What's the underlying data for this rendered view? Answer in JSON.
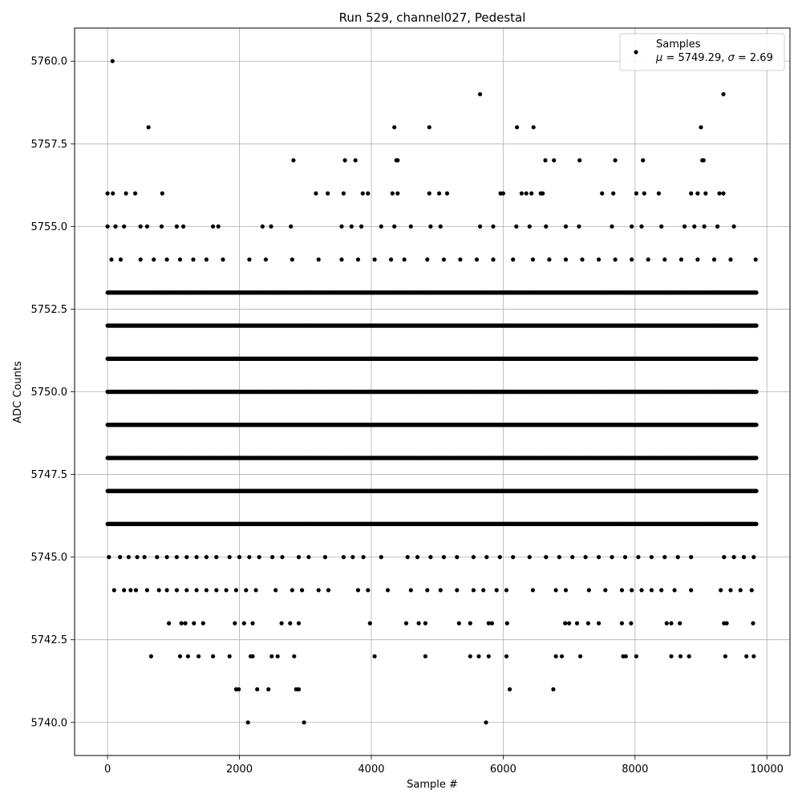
{
  "chart_data": {
    "type": "scatter",
    "title": "Run 529, channel027, Pedestal",
    "xlabel": "Sample #",
    "ylabel": "ADC Counts",
    "xlim": [
      -500,
      10350
    ],
    "ylim": [
      5739.0,
      5761.0
    ],
    "x_ticks": [
      0,
      2000,
      4000,
      6000,
      8000,
      10000
    ],
    "x_tick_labels": [
      "0",
      "2000",
      "4000",
      "6000",
      "8000",
      "10000"
    ],
    "y_ticks": [
      5740.0,
      5742.5,
      5745.0,
      5747.5,
      5750.0,
      5752.5,
      5755.0,
      5757.5,
      5760.0
    ],
    "y_tick_labels": [
      "5740.0",
      "5742.5",
      "5745.0",
      "5747.5",
      "5750.0",
      "5752.5",
      "5755.0",
      "5757.5",
      "5760.0"
    ],
    "grid": true,
    "legend_position": "top-right",
    "marker_color": "#000000",
    "series": [
      {
        "name": "Samples",
        "legend_stat_mu": "5749.29",
        "legend_stat_sigma": "2.69",
        "points": [
          [
            75,
            5760
          ],
          [
            5650,
            5759
          ],
          [
            9340,
            5759
          ],
          [
            620,
            5758
          ],
          [
            4350,
            5758
          ],
          [
            4880,
            5758
          ],
          [
            6210,
            5758
          ],
          [
            6460,
            5758
          ],
          [
            9000,
            5758
          ],
          [
            2820,
            5757
          ],
          [
            3600,
            5757
          ],
          [
            3760,
            5757
          ],
          [
            4380,
            5757
          ],
          [
            4400,
            5757
          ],
          [
            6640,
            5757
          ],
          [
            6770,
            5757
          ],
          [
            7160,
            5757
          ],
          [
            7700,
            5757
          ],
          [
            8120,
            5757
          ],
          [
            9020,
            5757
          ],
          [
            9040,
            5757
          ],
          [
            2130,
            5740
          ],
          [
            2980,
            5740
          ],
          [
            5740,
            5740
          ],
          [
            1950,
            5741
          ],
          [
            1990,
            5741
          ],
          [
            2270,
            5741
          ],
          [
            2440,
            5741
          ],
          [
            2860,
            5741
          ],
          [
            2900,
            5741
          ],
          [
            6100,
            5741
          ],
          [
            6760,
            5741
          ],
          [
            660,
            5742
          ],
          [
            1100,
            5742
          ],
          [
            1220,
            5742
          ],
          [
            1380,
            5742
          ],
          [
            1600,
            5742
          ],
          [
            1850,
            5742
          ],
          [
            2170,
            5742
          ],
          [
            2200,
            5742
          ],
          [
            2490,
            5742
          ],
          [
            2580,
            5742
          ],
          [
            2830,
            5742
          ],
          [
            4050,
            5742
          ],
          [
            4820,
            5742
          ],
          [
            5500,
            5742
          ],
          [
            5630,
            5742
          ],
          [
            5780,
            5742
          ],
          [
            6050,
            5742
          ],
          [
            6800,
            5742
          ],
          [
            6890,
            5742
          ],
          [
            7170,
            5742
          ],
          [
            7820,
            5742
          ],
          [
            7860,
            5742
          ],
          [
            8020,
            5742
          ],
          [
            8550,
            5742
          ],
          [
            8690,
            5742
          ],
          [
            8820,
            5742
          ],
          [
            9370,
            5742
          ],
          [
            9690,
            5742
          ],
          [
            9800,
            5742
          ],
          [
            930,
            5743
          ],
          [
            1120,
            5743
          ],
          [
            1180,
            5743
          ],
          [
            1310,
            5743
          ],
          [
            1450,
            5743
          ],
          [
            1930,
            5743
          ],
          [
            2070,
            5743
          ],
          [
            2200,
            5743
          ],
          [
            2640,
            5743
          ],
          [
            2770,
            5743
          ],
          [
            2900,
            5743
          ],
          [
            3980,
            5743
          ],
          [
            4530,
            5743
          ],
          [
            4720,
            5743
          ],
          [
            4820,
            5743
          ],
          [
            5330,
            5743
          ],
          [
            5500,
            5743
          ],
          [
            5780,
            5743
          ],
          [
            5830,
            5743
          ],
          [
            6060,
            5743
          ],
          [
            6940,
            5743
          ],
          [
            7000,
            5743
          ],
          [
            7120,
            5743
          ],
          [
            7290,
            5743
          ],
          [
            7450,
            5743
          ],
          [
            7800,
            5743
          ],
          [
            7940,
            5743
          ],
          [
            8480,
            5743
          ],
          [
            8550,
            5743
          ],
          [
            8680,
            5743
          ],
          [
            9350,
            5743
          ],
          [
            9390,
            5743
          ],
          [
            9790,
            5743
          ],
          [
            100,
            5744
          ],
          [
            250,
            5744
          ],
          [
            350,
            5744
          ],
          [
            430,
            5744
          ],
          [
            600,
            5744
          ],
          [
            780,
            5744
          ],
          [
            900,
            5744
          ],
          [
            1050,
            5744
          ],
          [
            1200,
            5744
          ],
          [
            1350,
            5744
          ],
          [
            1500,
            5744
          ],
          [
            1650,
            5744
          ],
          [
            1800,
            5744
          ],
          [
            1950,
            5744
          ],
          [
            2100,
            5744
          ],
          [
            2250,
            5744
          ],
          [
            2550,
            5744
          ],
          [
            2800,
            5744
          ],
          [
            2950,
            5744
          ],
          [
            3200,
            5744
          ],
          [
            3350,
            5744
          ],
          [
            3800,
            5744
          ],
          [
            3950,
            5744
          ],
          [
            4250,
            5744
          ],
          [
            4600,
            5744
          ],
          [
            4850,
            5744
          ],
          [
            5050,
            5744
          ],
          [
            5300,
            5744
          ],
          [
            5550,
            5744
          ],
          [
            5700,
            5744
          ],
          [
            5900,
            5744
          ],
          [
            6050,
            5744
          ],
          [
            6450,
            5744
          ],
          [
            6800,
            5744
          ],
          [
            6950,
            5744
          ],
          [
            7300,
            5744
          ],
          [
            7550,
            5744
          ],
          [
            7800,
            5744
          ],
          [
            7950,
            5744
          ],
          [
            8100,
            5744
          ],
          [
            8250,
            5744
          ],
          [
            8400,
            5744
          ],
          [
            8600,
            5744
          ],
          [
            8850,
            5744
          ],
          [
            9300,
            5744
          ],
          [
            9450,
            5744
          ],
          [
            9600,
            5744
          ],
          [
            9770,
            5744
          ],
          [
            20,
            5745
          ],
          [
            190,
            5745
          ],
          [
            320,
            5745
          ],
          [
            450,
            5745
          ],
          [
            560,
            5745
          ],
          [
            750,
            5745
          ],
          [
            900,
            5745
          ],
          [
            1050,
            5745
          ],
          [
            1200,
            5745
          ],
          [
            1350,
            5745
          ],
          [
            1500,
            5745
          ],
          [
            1650,
            5745
          ],
          [
            1850,
            5745
          ],
          [
            2000,
            5745
          ],
          [
            2150,
            5745
          ],
          [
            2300,
            5745
          ],
          [
            2500,
            5745
          ],
          [
            2650,
            5745
          ],
          [
            2900,
            5745
          ],
          [
            3050,
            5745
          ],
          [
            3300,
            5745
          ],
          [
            3580,
            5745
          ],
          [
            3720,
            5745
          ],
          [
            3880,
            5745
          ],
          [
            4150,
            5745
          ],
          [
            4550,
            5745
          ],
          [
            4700,
            5745
          ],
          [
            4900,
            5745
          ],
          [
            5100,
            5745
          ],
          [
            5300,
            5745
          ],
          [
            5550,
            5745
          ],
          [
            5750,
            5745
          ],
          [
            5950,
            5745
          ],
          [
            6150,
            5745
          ],
          [
            6400,
            5745
          ],
          [
            6650,
            5745
          ],
          [
            6850,
            5745
          ],
          [
            7050,
            5745
          ],
          [
            7250,
            5745
          ],
          [
            7450,
            5745
          ],
          [
            7650,
            5745
          ],
          [
            7850,
            5745
          ],
          [
            8050,
            5745
          ],
          [
            8250,
            5745
          ],
          [
            8450,
            5745
          ],
          [
            8650,
            5745
          ],
          [
            8850,
            5745
          ],
          [
            9350,
            5745
          ],
          [
            9500,
            5745
          ],
          [
            9650,
            5745
          ],
          [
            9800,
            5745
          ],
          [
            60,
            5754
          ],
          [
            200,
            5754
          ],
          [
            500,
            5754
          ],
          [
            700,
            5754
          ],
          [
            900,
            5754
          ],
          [
            1100,
            5754
          ],
          [
            1300,
            5754
          ],
          [
            1500,
            5754
          ],
          [
            1750,
            5754
          ],
          [
            2150,
            5754
          ],
          [
            2400,
            5754
          ],
          [
            2800,
            5754
          ],
          [
            3200,
            5754
          ],
          [
            3550,
            5754
          ],
          [
            3800,
            5754
          ],
          [
            4050,
            5754
          ],
          [
            4300,
            5754
          ],
          [
            4500,
            5754
          ],
          [
            4850,
            5754
          ],
          [
            5100,
            5754
          ],
          [
            5350,
            5754
          ],
          [
            5600,
            5754
          ],
          [
            5850,
            5754
          ],
          [
            6150,
            5754
          ],
          [
            6450,
            5754
          ],
          [
            6700,
            5754
          ],
          [
            6950,
            5754
          ],
          [
            7200,
            5754
          ],
          [
            7450,
            5754
          ],
          [
            7700,
            5754
          ],
          [
            7950,
            5754
          ],
          [
            8200,
            5754
          ],
          [
            8450,
            5754
          ],
          [
            8700,
            5754
          ],
          [
            8950,
            5754
          ],
          [
            9200,
            5754
          ],
          [
            9450,
            5754
          ],
          [
            9830,
            5754
          ],
          [
            0,
            5755
          ],
          [
            120,
            5755
          ],
          [
            250,
            5755
          ],
          [
            500,
            5755
          ],
          [
            600,
            5755
          ],
          [
            820,
            5755
          ],
          [
            1050,
            5755
          ],
          [
            1150,
            5755
          ],
          [
            1600,
            5755
          ],
          [
            1680,
            5755
          ],
          [
            2350,
            5755
          ],
          [
            2480,
            5755
          ],
          [
            2780,
            5755
          ],
          [
            3550,
            5755
          ],
          [
            3700,
            5755
          ],
          [
            3850,
            5755
          ],
          [
            4150,
            5755
          ],
          [
            4350,
            5755
          ],
          [
            4600,
            5755
          ],
          [
            4900,
            5755
          ],
          [
            5050,
            5755
          ],
          [
            5650,
            5755
          ],
          [
            5850,
            5755
          ],
          [
            6200,
            5755
          ],
          [
            6400,
            5755
          ],
          [
            6650,
            5755
          ],
          [
            6950,
            5755
          ],
          [
            7150,
            5755
          ],
          [
            7650,
            5755
          ],
          [
            7950,
            5755
          ],
          [
            8100,
            5755
          ],
          [
            8400,
            5755
          ],
          [
            8750,
            5755
          ],
          [
            8900,
            5755
          ],
          [
            9050,
            5755
          ],
          [
            9250,
            5755
          ],
          [
            9500,
            5755
          ],
          [
            0,
            5756
          ],
          [
            80,
            5756
          ],
          [
            280,
            5756
          ],
          [
            420,
            5756
          ],
          [
            830,
            5756
          ],
          [
            3160,
            5756
          ],
          [
            3340,
            5756
          ],
          [
            3580,
            5756
          ],
          [
            3870,
            5756
          ],
          [
            3950,
            5756
          ],
          [
            4320,
            5756
          ],
          [
            4400,
            5756
          ],
          [
            4880,
            5756
          ],
          [
            5030,
            5756
          ],
          [
            5150,
            5756
          ],
          [
            5960,
            5756
          ],
          [
            6000,
            5756
          ],
          [
            6280,
            5756
          ],
          [
            6350,
            5756
          ],
          [
            6430,
            5756
          ],
          [
            6570,
            5756
          ],
          [
            6600,
            5756
          ],
          [
            7500,
            5756
          ],
          [
            7670,
            5756
          ],
          [
            8020,
            5756
          ],
          [
            8140,
            5756
          ],
          [
            8360,
            5756
          ],
          [
            8850,
            5756
          ],
          [
            8950,
            5756
          ],
          [
            9070,
            5756
          ],
          [
            9280,
            5756
          ],
          [
            9340,
            5756
          ]
        ],
        "dense_levels": [
          5746,
          5747,
          5748,
          5749,
          5750,
          5751,
          5752,
          5753
        ],
        "dense_x_range": [
          0,
          9840
        ]
      }
    ]
  }
}
